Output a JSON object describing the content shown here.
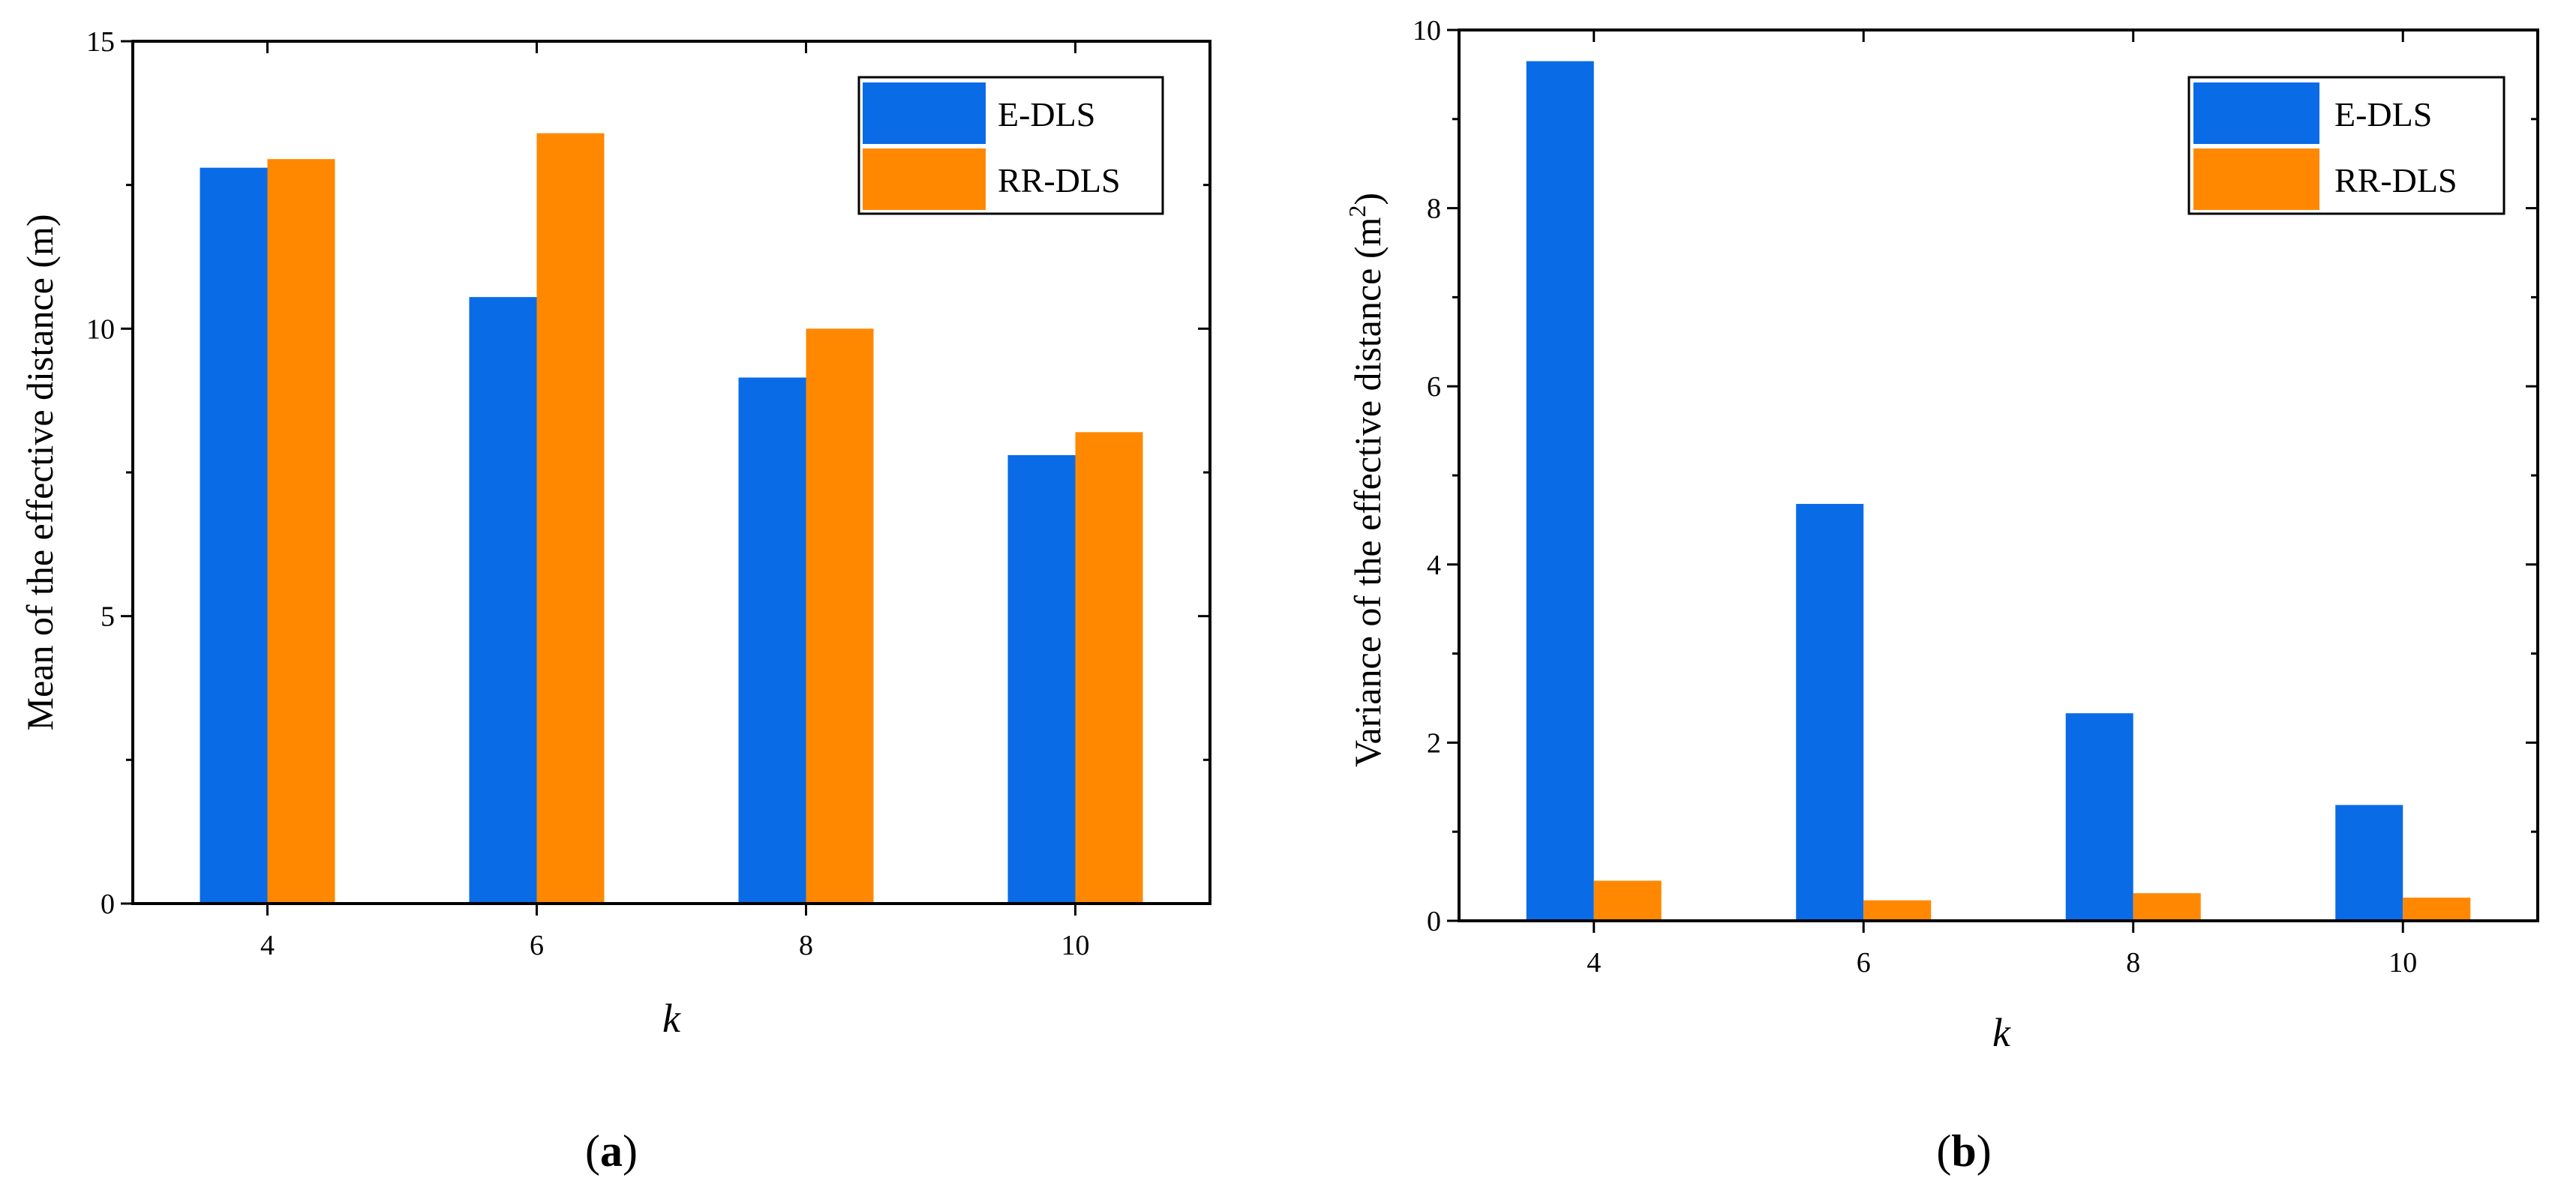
{
  "chart_data": [
    {
      "type": "bar",
      "panel_label": "a",
      "categories": [
        "4",
        "6",
        "8",
        "10"
      ],
      "series": [
        {
          "name": "E-DLS",
          "color": "#0a6be6",
          "values": [
            12.8,
            10.55,
            9.15,
            7.8
          ]
        },
        {
          "name": "RR-DLS",
          "color": "#ff8800",
          "values": [
            12.95,
            13.4,
            10.0,
            8.2
          ]
        }
      ],
      "title": "",
      "xlabel": "k",
      "ylabel": "Mean of the effective distance (m)",
      "ylim": [
        0,
        15
      ],
      "yticks": [
        "0",
        "5",
        "10",
        "15"
      ],
      "legend_position": "top-right",
      "grid": false
    },
    {
      "type": "bar",
      "panel_label": "b",
      "categories": [
        "4",
        "6",
        "8",
        "10"
      ],
      "series": [
        {
          "name": "E-DLS",
          "color": "#0a6be6",
          "values": [
            9.65,
            4.68,
            2.33,
            1.3
          ]
        },
        {
          "name": "RR-DLS",
          "color": "#ff8800",
          "values": [
            0.45,
            0.23,
            0.31,
            0.26
          ]
        }
      ],
      "title": "",
      "xlabel": "k",
      "ylabel": "Variance of the effective distance (m",
      "ylabel_superscript": "2",
      "ylabel_suffix": ")",
      "ylim": [
        0,
        10
      ],
      "yticks": [
        "0",
        "2",
        "4",
        "6",
        "8",
        "10"
      ],
      "legend_position": "top-right",
      "grid": false
    }
  ]
}
